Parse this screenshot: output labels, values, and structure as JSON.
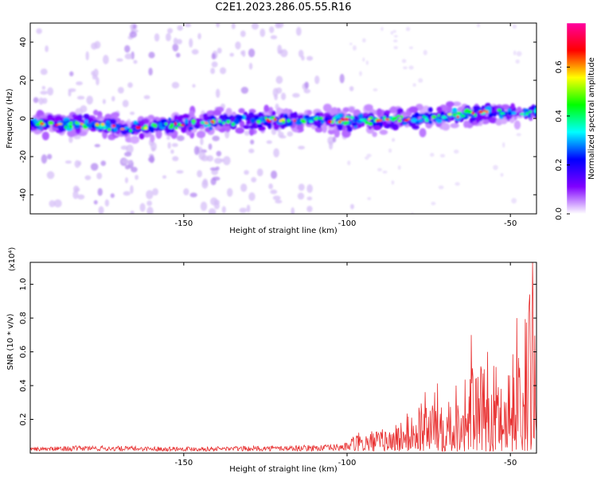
{
  "title": "C2E1.2023.286.05.55.R16",
  "chart_data": [
    {
      "type": "heatmap",
      "xlabel": "Height of straight line (km)",
      "ylabel": "Frequency (Hz)",
      "xlim": [
        -197,
        -42
      ],
      "ylim": [
        -50,
        50
      ],
      "xticks": [
        -150,
        -100,
        -50
      ],
      "yticks": [
        -40,
        -20,
        0,
        20,
        40
      ],
      "xtick_labels": [
        "-150",
        "-100",
        "-50"
      ],
      "ytick_labels": [
        "-40",
        "-20",
        "0",
        "20",
        "40"
      ],
      "band_center": [
        {
          "x": -197,
          "y": -3
        },
        {
          "x": -180,
          "y": -3
        },
        {
          "x": -165,
          "y": -5
        },
        {
          "x": -150,
          "y": -3
        },
        {
          "x": -130,
          "y": -1
        },
        {
          "x": -110,
          "y": -1
        },
        {
          "x": -90,
          "y": -1
        },
        {
          "x": -75,
          "y": 0
        },
        {
          "x": -60,
          "y": 3
        },
        {
          "x": -42,
          "y": 3
        }
      ],
      "colorbar": {
        "label": "Normalized spectral amplitude",
        "range": [
          0,
          0.78
        ],
        "ticks": [
          0.0,
          0.2,
          0.4,
          0.6
        ],
        "tick_labels": [
          "0.0",
          "0.2",
          "0.4",
          "0.6"
        ],
        "colormap": [
          "#ffffff",
          "#8000ff",
          "#0000ff",
          "#00ffff",
          "#00ff00",
          "#ffff00",
          "#ff0000",
          "#ff00a0"
        ]
      }
    },
    {
      "type": "line",
      "xlabel": "Height of straight line (km)",
      "ylabel": "SNR (10 * v/v)",
      "scale_note": "(x10⁴)",
      "xlim": [
        -197,
        -42
      ],
      "ylim": [
        0,
        1.13
      ],
      "xticks": [
        -150,
        -100,
        -50
      ],
      "yticks": [
        0.2,
        0.4,
        0.6,
        0.8,
        1.0
      ],
      "xtick_labels": [
        "-150",
        "-100",
        "-50"
      ],
      "ytick_labels": [
        "0.2",
        "0.4",
        "0.6",
        "0.8",
        "1.0"
      ],
      "color": "#e83030",
      "envelope": [
        {
          "x": -197,
          "y": 0.04
        },
        {
          "x": -180,
          "y": 0.06
        },
        {
          "x": -160,
          "y": 0.05
        },
        {
          "x": -140,
          "y": 0.05
        },
        {
          "x": -120,
          "y": 0.06
        },
        {
          "x": -105,
          "y": 0.07
        },
        {
          "x": -95,
          "y": 0.12
        },
        {
          "x": -88,
          "y": 0.14
        },
        {
          "x": -82,
          "y": 0.22
        },
        {
          "x": -76,
          "y": 0.36
        },
        {
          "x": -72,
          "y": 0.42
        },
        {
          "x": -66,
          "y": 0.44
        },
        {
          "x": -62,
          "y": 0.52
        },
        {
          "x": -58,
          "y": 0.5
        },
        {
          "x": -52,
          "y": 0.55
        },
        {
          "x": -47,
          "y": 0.65
        },
        {
          "x": -44,
          "y": 0.95
        },
        {
          "x": -42,
          "y": 1.1
        }
      ],
      "peaks": [
        {
          "x": -62,
          "y": 0.7
        },
        {
          "x": -57,
          "y": 0.6
        },
        {
          "x": -48,
          "y": 0.8
        },
        {
          "x": -44,
          "y": 0.94
        },
        {
          "x": -43.2,
          "y": 1.13
        }
      ]
    }
  ]
}
